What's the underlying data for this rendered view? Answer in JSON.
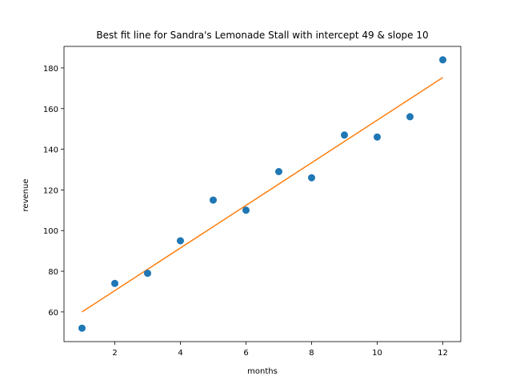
{
  "chart_data": {
    "type": "scatter",
    "title": "Best fit line for Sandra's Lemonade Stall with intercept 49 & slope 10",
    "xlabel": "months",
    "ylabel": "revenue",
    "xlim": [
      0.45,
      12.55
    ],
    "ylim": [
      45.4,
      190.6
    ],
    "xticks": [
      2,
      4,
      6,
      8,
      10,
      12
    ],
    "yticks": [
      60,
      80,
      100,
      120,
      140,
      160,
      180
    ],
    "grid": false,
    "series": [
      {
        "type": "scatter",
        "color": "#1f77b4",
        "x": [
          1,
          2,
          3,
          4,
          5,
          6,
          7,
          8,
          9,
          10,
          11,
          12
        ],
        "y": [
          52,
          74,
          79,
          95,
          115,
          110,
          129,
          126,
          147,
          146,
          156,
          184
        ]
      },
      {
        "type": "line",
        "color": "#ff7f0e",
        "x": [
          1,
          12
        ],
        "y": [
          60,
          175.3
        ]
      }
    ]
  }
}
